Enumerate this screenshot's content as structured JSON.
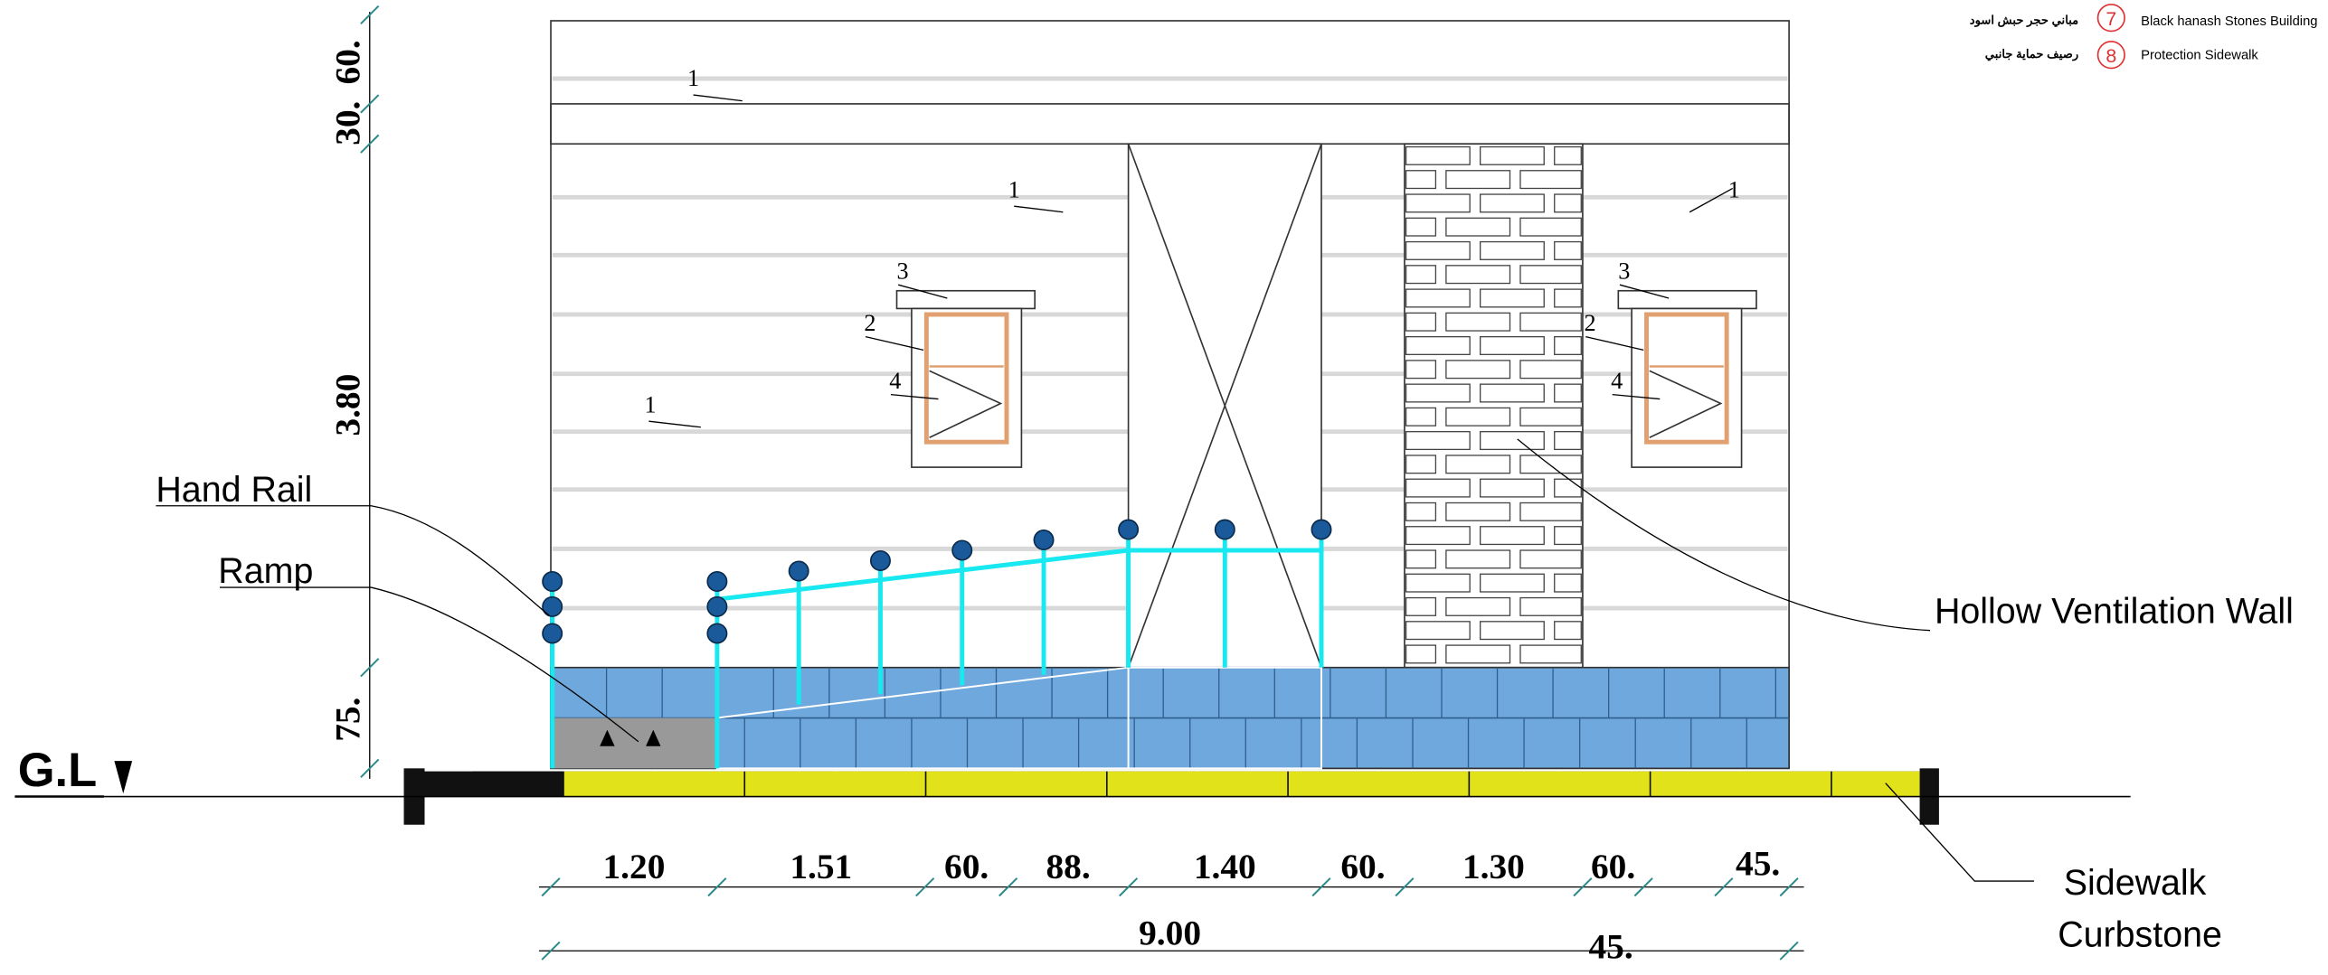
{
  "legend": [
    {
      "number": "7",
      "arabic": "مباني حجر حبش اسود",
      "label": "Black hanash Stones Building"
    },
    {
      "number": "8",
      "arabic": "رصيف حماية جانبي",
      "label": "Protection Sidewalk"
    }
  ],
  "tags": [
    "1",
    "1",
    "1",
    "1",
    "3",
    "2",
    "4",
    "3",
    "2",
    "4"
  ],
  "annotations": {
    "hand_rail": "Hand Rail",
    "ramp": "Ramp",
    "ventilation_wall": "Hollow Ventilation Wall",
    "sidewalk": "Sidewalk",
    "curbstone": "Curbstone"
  },
  "ground_level": "G.L",
  "vertical_dimensions": [
    "60.",
    "30.",
    "3.80",
    "75."
  ],
  "horizontal_dimensions": [
    "1.20",
    "1.51",
    "60.",
    "88.",
    "1.40",
    "60.",
    "1.30",
    "60.",
    "45."
  ],
  "total_dimension": "9.00",
  "extra_dimension": "45."
}
